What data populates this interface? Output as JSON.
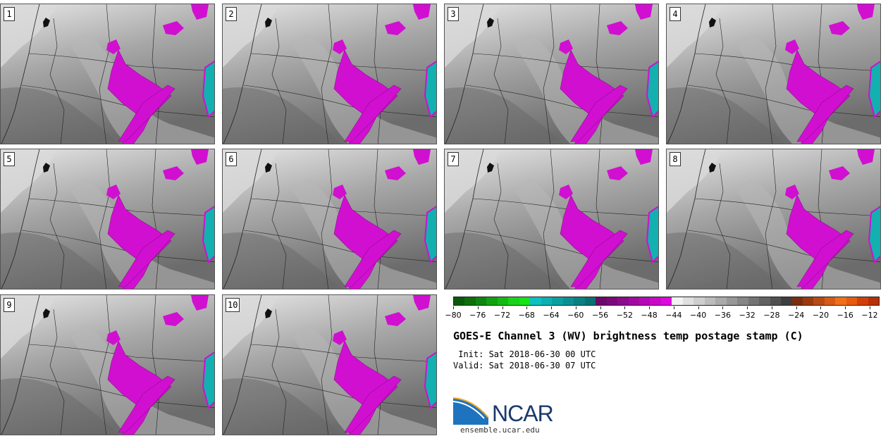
{
  "figure": {
    "title": "GOES-E Channel 3 (WV) brightness temp postage stamp (C)",
    "init": " Init: Sat 2018-06-30 00 UTC",
    "valid": "Valid: Sat 2018-06-30 07 UTC",
    "logo_text": "NCAR",
    "url": "ensemble.ucar.edu"
  },
  "panels": [
    {
      "label": "1"
    },
    {
      "label": "2"
    },
    {
      "label": "3"
    },
    {
      "label": "4"
    },
    {
      "label": "5"
    },
    {
      "label": "6"
    },
    {
      "label": "7"
    },
    {
      "label": "8"
    },
    {
      "label": "9"
    },
    {
      "label": "10"
    }
  ],
  "colorbar": {
    "tick_labels": [
      "−80",
      "−76",
      "−72",
      "−68",
      "−64",
      "−60",
      "−56",
      "−52",
      "−48",
      "−44",
      "−40",
      "−36",
      "−32",
      "−28",
      "−24",
      "−20",
      "−16",
      "−12"
    ],
    "colors": [
      "#0b5a0b",
      "#0c6e0c",
      "#0f850f",
      "#11a011",
      "#15b915",
      "#1ad21a",
      "#17e317",
      "#0fc0c0",
      "#0cb0b0",
      "#0aa0a0",
      "#0a9090",
      "#0a8080",
      "#0a7070",
      "#6a0a6a",
      "#7a0a7a",
      "#8c0a8c",
      "#a00aa0",
      "#b40ab4",
      "#c80ac8",
      "#dc0adc",
      "#f2f2f2",
      "#e0e0e0",
      "#cecece",
      "#bcbcbc",
      "#aaaaaa",
      "#989898",
      "#868686",
      "#747474",
      "#626262",
      "#505050",
      "#3e3e3e",
      "#7a2e0e",
      "#9a3a10",
      "#b84a14",
      "#d65a18",
      "#f07018",
      "#e85a10",
      "#d04008",
      "#b83008"
    ],
    "colormap_palette": {
      "light_gray": "#e6e6e6",
      "mid_gray": "#a8a8a8",
      "dark_gray": "#6c6c6c",
      "magenta": "#d10fd1",
      "dark_magenta": "#8e0e8e",
      "teal": "#13b0b0"
    }
  }
}
